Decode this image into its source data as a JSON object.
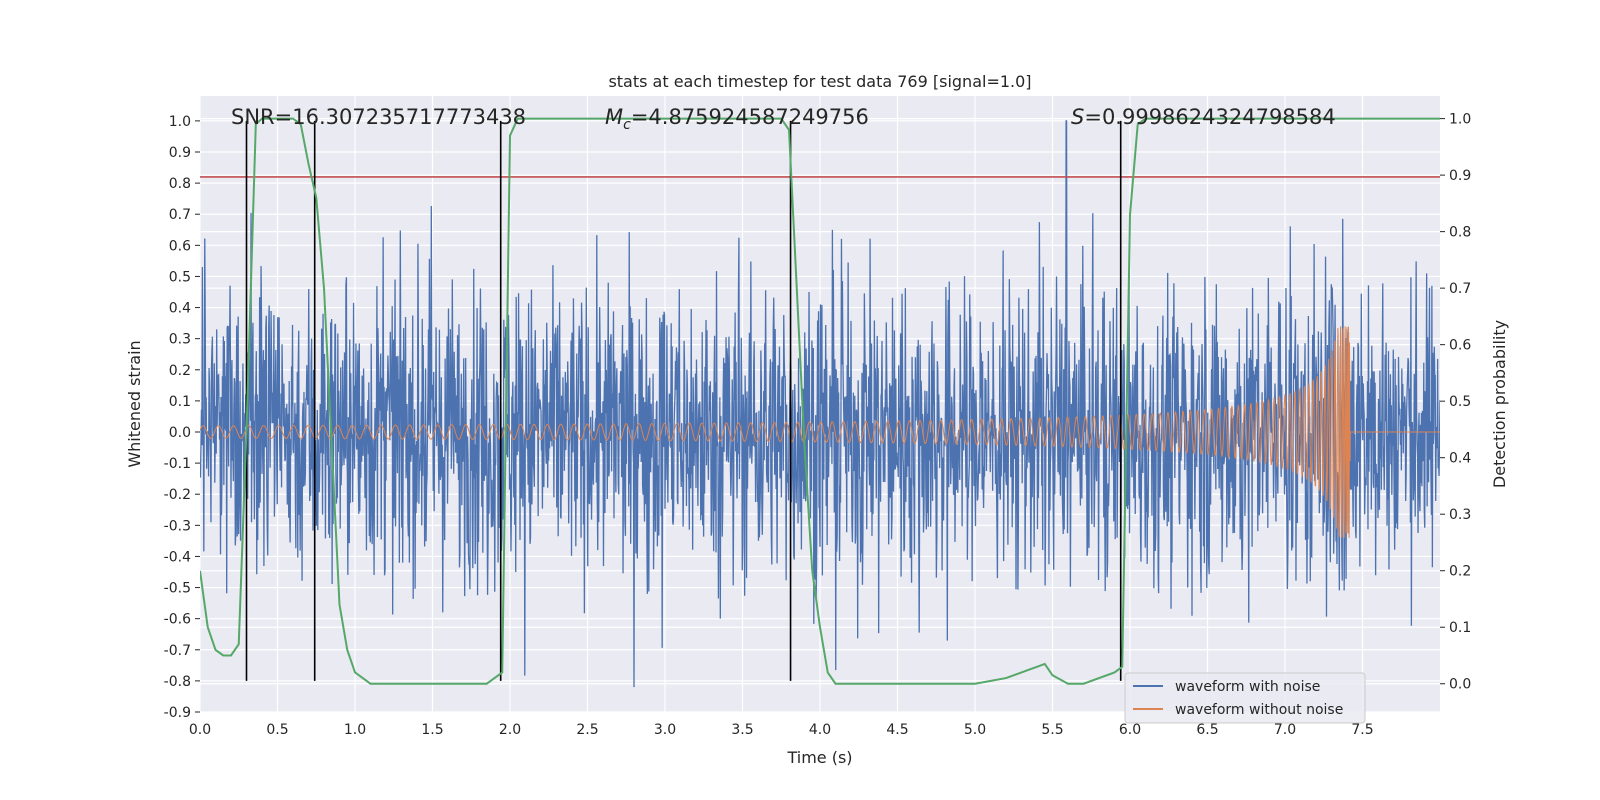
{
  "chart_data": {
    "type": "line",
    "title": "stats at each timestep for test data 769 [signal=1.0]",
    "xlabel": "Time (s)",
    "ylabel": "Whitened strain",
    "y2label": "Detection probability",
    "xlim": [
      0.0,
      8.0
    ],
    "ylim": [
      -0.9,
      1.08
    ],
    "y2lim": [
      -0.05,
      1.04
    ],
    "xticks": [
      "0.0",
      "0.5",
      "1.0",
      "1.5",
      "2.0",
      "2.5",
      "3.0",
      "3.5",
      "4.0",
      "4.5",
      "5.0",
      "5.5",
      "6.0",
      "6.5",
      "7.0",
      "7.5"
    ],
    "yticks": [
      "1.0",
      "0.9",
      "0.8",
      "0.7",
      "0.6",
      "0.5",
      "0.4",
      "0.3",
      "0.2",
      "0.1",
      "0.0",
      "-0.1",
      "-0.2",
      "-0.3",
      "-0.4",
      "-0.5",
      "-0.6",
      "-0.7",
      "-0.8",
      "-0.9"
    ],
    "y2ticks": [
      "1.0",
      "0.9",
      "0.8",
      "0.7",
      "0.6",
      "0.5",
      "0.4",
      "0.3",
      "0.2",
      "0.1",
      "0.0"
    ],
    "annotations": {
      "snr": "SNR=16.307235717773438",
      "mc_symbol": "M",
      "mc_sub": "c",
      "mc_value": "=4.875924587249756",
      "s_symbol": "S",
      "s_value": "=0.9998624324798584"
    },
    "threshold": 0.82,
    "vlines": [
      0.3,
      0.74,
      1.94,
      3.81,
      5.94
    ],
    "merger_time": 7.42,
    "series": [
      {
        "name": "waveform with noise",
        "color": "#4c72b0",
        "kind": "noise",
        "approx_amplitude": 0.3,
        "peak": 1.0
      },
      {
        "name": "waveform without noise",
        "color": "#dd8452",
        "kind": "chirp",
        "start_amplitude": 0.02,
        "peak_amplitude": 0.34
      },
      {
        "name": "detection probability",
        "color": "#55a868",
        "axis": "right",
        "x": [
          0.0,
          0.05,
          0.1,
          0.15,
          0.2,
          0.25,
          0.3,
          0.36,
          0.4,
          0.45,
          0.5,
          0.55,
          0.6,
          0.65,
          0.7,
          0.75,
          0.8,
          0.9,
          0.95,
          1.0,
          1.1,
          1.5,
          1.85,
          1.9,
          1.95,
          2.0,
          2.05,
          2.1,
          2.5,
          3.0,
          3.5,
          3.75,
          3.8,
          3.85,
          3.9,
          3.95,
          4.0,
          4.05,
          4.1,
          5.0,
          5.2,
          5.3,
          5.35,
          5.4,
          5.45,
          5.5,
          5.6,
          5.7,
          5.9,
          5.95,
          6.0,
          6.05,
          6.1,
          6.2,
          7.0,
          7.5,
          8.0
        ],
        "values": [
          0.2,
          0.1,
          0.06,
          0.05,
          0.05,
          0.07,
          0.45,
          0.99,
          1.0,
          1.0,
          1.0,
          1.0,
          1.0,
          0.99,
          0.92,
          0.86,
          0.7,
          0.14,
          0.06,
          0.02,
          0.0,
          0.0,
          0.0,
          0.01,
          0.02,
          0.97,
          1.0,
          1.0,
          1.0,
          1.0,
          1.0,
          1.0,
          0.98,
          0.7,
          0.42,
          0.2,
          0.1,
          0.02,
          0.0,
          0.0,
          0.01,
          0.02,
          0.025,
          0.03,
          0.035,
          0.015,
          0.0,
          0.0,
          0.02,
          0.03,
          0.83,
          0.99,
          1.0,
          1.0,
          1.0,
          1.0,
          1.0
        ]
      }
    ]
  }
}
